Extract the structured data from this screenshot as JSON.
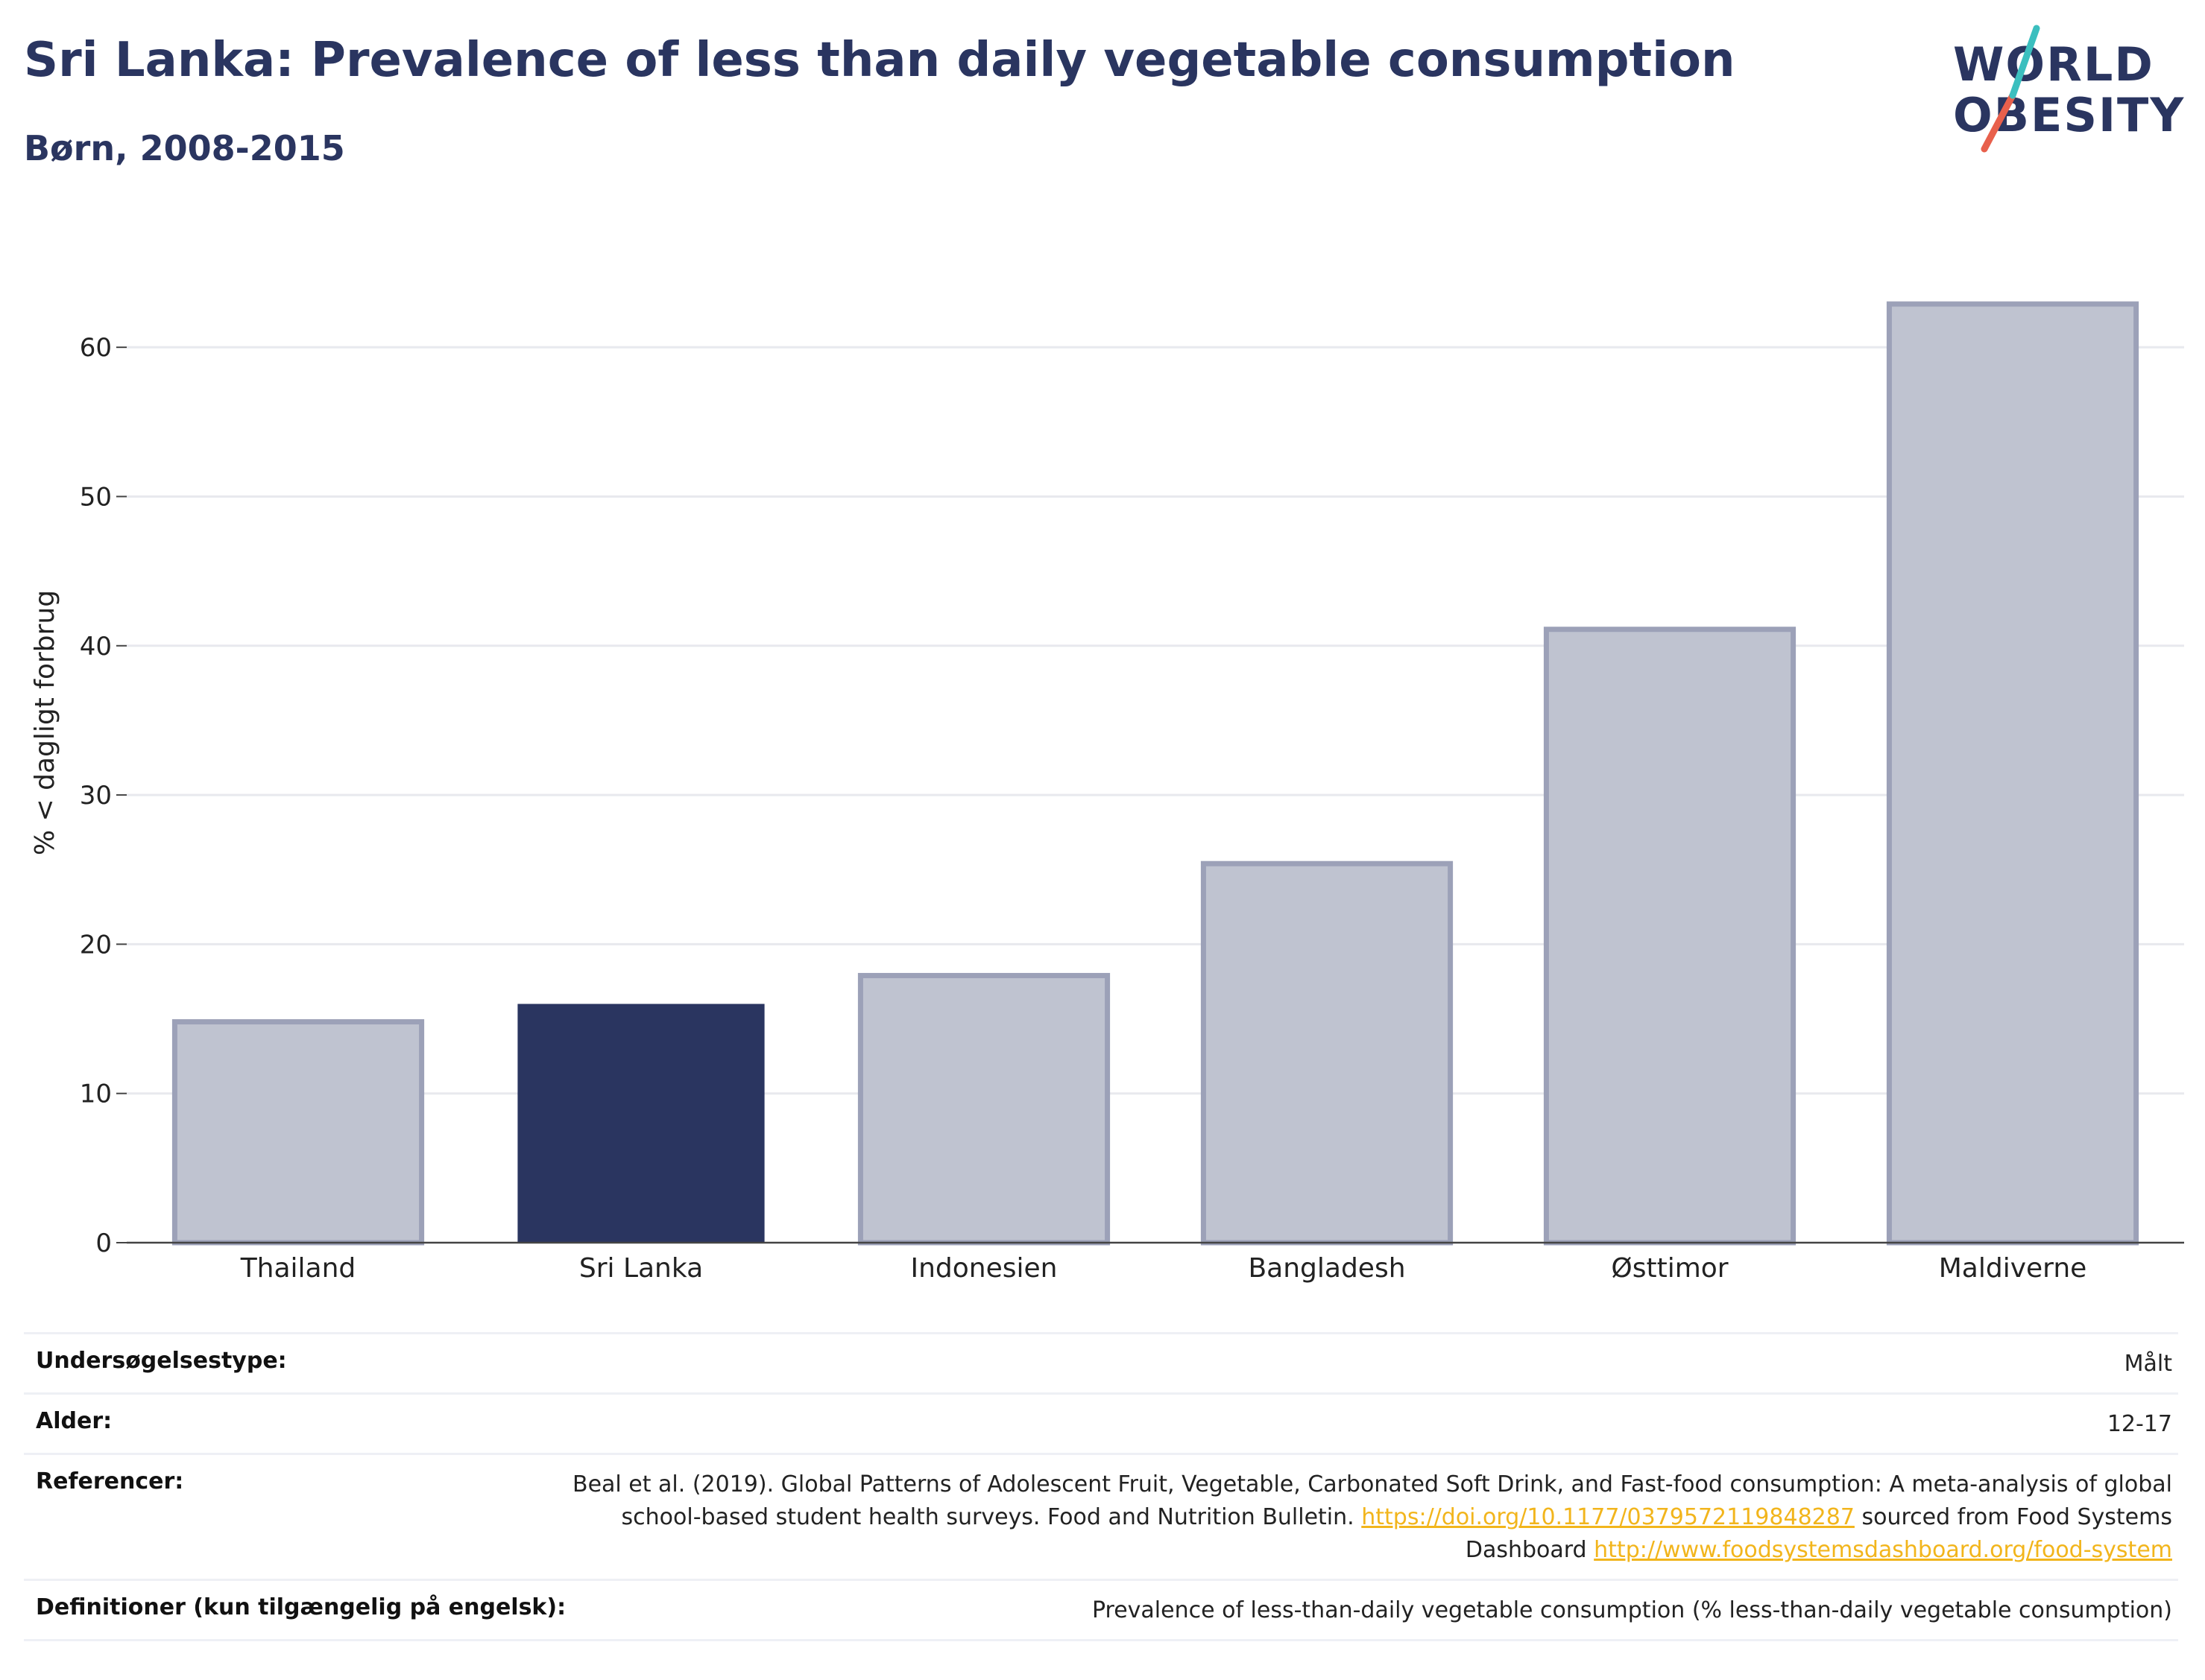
{
  "header": {
    "title": "Sri Lanka: Prevalence of less than daily vegetable consumption",
    "subtitle": "Børn, 2008-2015"
  },
  "logo": {
    "line1": "WORLD",
    "line2": "OBESITY",
    "accent_teal": "#3bbfbf",
    "accent_red": "#e8604c"
  },
  "colors": {
    "highlight": "#2a3560",
    "bar": "#bfc3d0",
    "bar_border": "#9ca1b8",
    "grid": "#e8e9ee",
    "text": "#2a3560"
  },
  "chart_data": {
    "type": "bar",
    "categories": [
      "Thailand",
      "Sri Lanka",
      "Indonesien",
      "Bangladesh",
      "Østtimor",
      "Maldiverne"
    ],
    "values": [
      14.8,
      16.0,
      17.9,
      25.4,
      41.1,
      62.9
    ],
    "highlight": "Sri Lanka",
    "ylabel": "% < dagligt forbrug",
    "xlabel": "",
    "ylim": [
      0,
      65
    ],
    "yticks": [
      0,
      10,
      20,
      30,
      40,
      50,
      60
    ],
    "grid": true
  },
  "meta": {
    "survey_label": "Undersøgelsestype:",
    "survey_value": "Målt",
    "age_label": "Alder:",
    "age_value": "12-17",
    "ref_label": "Referencer:",
    "ref_text_1": "Beal et al. (2019). Global Patterns of Adolescent Fruit, Vegetable, Carbonated Soft Drink, and Fast-food consumption: A meta-analysis of global school-based student health surveys. Food and Nutrition Bulletin.",
    "ref_link_1": "https://doi.org/10.1177/0379572119848287",
    "ref_text_2": "sourced from Food Systems Dashboard",
    "ref_link_2": "http://www.foodsystemsdashboard.org/food-system",
    "def_label": "Definitioner (kun tilgængelig på engelsk):",
    "def_value": "Prevalence of less-than-daily vegetable consumption (% less-than-daily vegetable consumption)"
  }
}
